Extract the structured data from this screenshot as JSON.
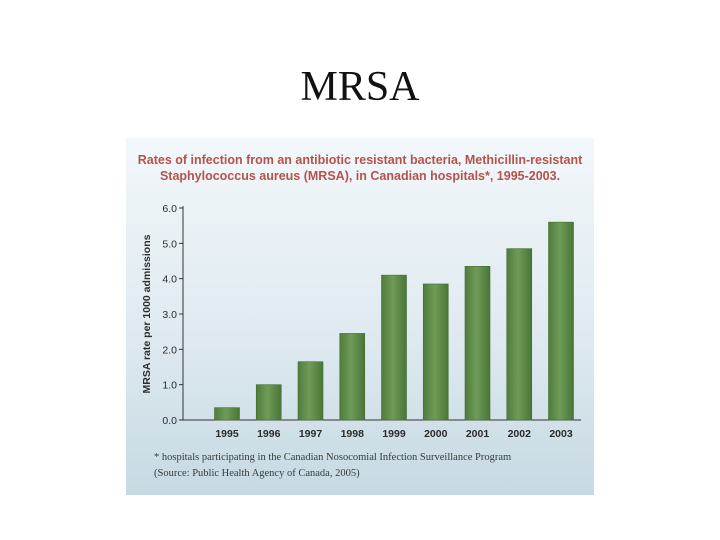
{
  "slide": {
    "title": "MRSA"
  },
  "chart_data": {
    "type": "bar",
    "title_lines": [
      "Rates of infection from an antibiotic resistant bacteria, Methicillin-resistant",
      "Staphylococcus aureus (MRSA), in Canadian hospitals*, 1995-2003."
    ],
    "ylabel": "MRSA rate per 1000 admissions",
    "xlabel": "",
    "ylim": [
      0,
      6
    ],
    "yticks": [
      "0.0",
      "1.0",
      "2.0",
      "3.0",
      "4.0",
      "5.0",
      "6.0"
    ],
    "categories": [
      "1995",
      "1996",
      "1997",
      "1998",
      "1999",
      "2000",
      "2001",
      "2002",
      "2003"
    ],
    "values": [
      0.35,
      1.0,
      1.65,
      2.45,
      4.1,
      3.85,
      4.35,
      4.85,
      5.6
    ],
    "bar_color": "#5f8f4a",
    "grid": false,
    "footnote_lines": [
      "* hospitals participating in the Canadian Nosocomial Infection Surveillance Program",
      "(Source: Public Health Agency of Canada, 2005)"
    ]
  }
}
